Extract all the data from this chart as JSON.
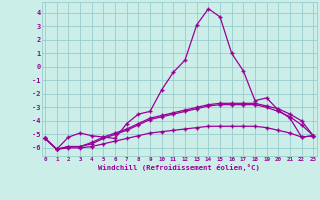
{
  "xlabel": "Windchill (Refroidissement éolien,°C)",
  "background_color": "#cceee8",
  "grid_color": "#99cccc",
  "line_color": "#990099",
  "x_ticks": [
    0,
    1,
    2,
    3,
    4,
    5,
    6,
    7,
    8,
    9,
    10,
    11,
    12,
    13,
    14,
    15,
    16,
    17,
    18,
    19,
    20,
    21,
    22,
    23
  ],
  "y_ticks": [
    -6,
    -5,
    -4,
    -3,
    -2,
    -1,
    0,
    1,
    2,
    3,
    4
  ],
  "ylim": [
    -6.6,
    4.8
  ],
  "xlim": [
    -0.3,
    23.3
  ],
  "series1_x": [
    0,
    1,
    2,
    3,
    4,
    5,
    6,
    7,
    8,
    9,
    10,
    11,
    12,
    13,
    14,
    15,
    16,
    17,
    18,
    19,
    20,
    21,
    22,
    23
  ],
  "series1_y": [
    -5.3,
    -6.1,
    -5.2,
    -4.9,
    -5.1,
    -5.2,
    -5.3,
    -4.2,
    -3.5,
    -3.3,
    -1.7,
    -0.4,
    0.5,
    3.1,
    4.3,
    3.7,
    1.0,
    -0.3,
    -2.5,
    -2.3,
    -3.2,
    -3.8,
    -5.2,
    -5.1
  ],
  "series2_x": [
    0,
    1,
    2,
    3,
    4,
    5,
    6,
    7,
    8,
    9,
    10,
    11,
    12,
    13,
    14,
    15,
    16,
    17,
    18,
    19,
    20,
    21,
    22,
    23
  ],
  "series2_y": [
    -5.3,
    -6.1,
    -5.9,
    -5.9,
    -5.6,
    -5.2,
    -4.9,
    -4.6,
    -4.2,
    -3.8,
    -3.6,
    -3.4,
    -3.2,
    -3.0,
    -2.8,
    -2.7,
    -2.7,
    -2.7,
    -2.7,
    -2.9,
    -3.1,
    -3.5,
    -4.0,
    -5.1
  ],
  "series3_x": [
    0,
    1,
    2,
    3,
    4,
    5,
    6,
    7,
    8,
    9,
    10,
    11,
    12,
    13,
    14,
    15,
    16,
    17,
    18,
    19,
    20,
    21,
    22,
    23
  ],
  "series3_y": [
    -5.3,
    -6.1,
    -5.9,
    -5.9,
    -5.7,
    -5.3,
    -5.0,
    -4.7,
    -4.3,
    -3.9,
    -3.7,
    -3.5,
    -3.3,
    -3.1,
    -2.9,
    -2.8,
    -2.8,
    -2.8,
    -2.8,
    -3.0,
    -3.3,
    -3.7,
    -4.3,
    -5.1
  ],
  "series4_x": [
    0,
    1,
    2,
    3,
    4,
    5,
    6,
    7,
    8,
    9,
    10,
    11,
    12,
    13,
    14,
    15,
    16,
    17,
    18,
    19,
    20,
    21,
    22,
    23
  ],
  "series4_y": [
    -5.3,
    -6.1,
    -6.0,
    -6.0,
    -5.9,
    -5.7,
    -5.5,
    -5.3,
    -5.1,
    -4.9,
    -4.8,
    -4.7,
    -4.6,
    -4.5,
    -4.4,
    -4.4,
    -4.4,
    -4.4,
    -4.4,
    -4.5,
    -4.7,
    -4.9,
    -5.2,
    -5.1
  ]
}
